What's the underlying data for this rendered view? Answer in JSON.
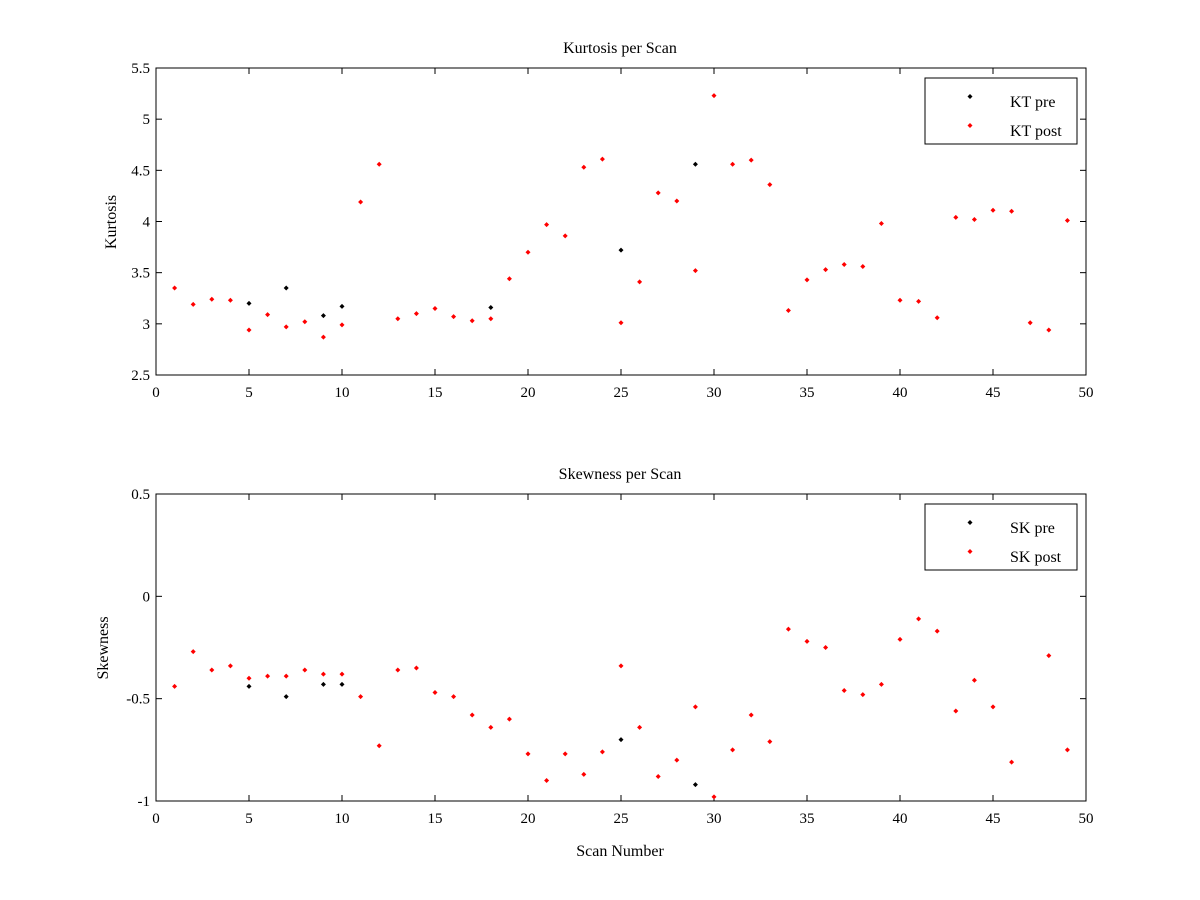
{
  "chart_data": [
    {
      "type": "scatter",
      "title": "Kurtosis per Scan",
      "xlabel": "",
      "ylabel": "Kurtosis",
      "xlim": [
        0,
        50
      ],
      "ylim": [
        2.5,
        5.5
      ],
      "xticks": [
        "0",
        "5",
        "10",
        "15",
        "20",
        "25",
        "30",
        "35",
        "40",
        "45",
        "50"
      ],
      "yticks": [
        "2.5",
        "3",
        "3.5",
        "4",
        "4.5",
        "5",
        "5.5"
      ],
      "grid": false,
      "legend_position": "top-right",
      "series": [
        {
          "name": "KT pre",
          "color": "#000000",
          "x": [
            5,
            7,
            9,
            10,
            18,
            25,
            29
          ],
          "y": [
            3.2,
            3.35,
            3.08,
            3.17,
            3.16,
            3.72,
            4.56
          ]
        },
        {
          "name": "KT post",
          "color": "#ff0000",
          "x": [
            1,
            2,
            3,
            4,
            5,
            6,
            7,
            8,
            9,
            10,
            11,
            12,
            13,
            14,
            15,
            16,
            17,
            18,
            19,
            20,
            21,
            22,
            23,
            24,
            25,
            26,
            27,
            28,
            29,
            30,
            31,
            32,
            33,
            34,
            35,
            36,
            37,
            38,
            39,
            40,
            41,
            42,
            43,
            44,
            45,
            46,
            47,
            48,
            49
          ],
          "y": [
            3.35,
            3.19,
            3.24,
            3.23,
            2.94,
            3.09,
            2.97,
            3.02,
            2.87,
            2.99,
            4.19,
            4.56,
            3.05,
            3.1,
            3.15,
            3.07,
            3.03,
            3.05,
            3.44,
            3.7,
            3.97,
            3.86,
            4.53,
            4.61,
            3.01,
            3.41,
            4.28,
            4.2,
            3.52,
            5.23,
            4.56,
            4.6,
            4.36,
            3.13,
            3.43,
            3.53,
            3.58,
            3.56,
            3.98,
            3.23,
            3.22,
            3.06,
            4.04,
            4.02,
            4.11,
            4.1,
            3.01,
            2.94,
            4.01
          ]
        }
      ]
    },
    {
      "type": "scatter",
      "title": "Skewness per Scan",
      "xlabel": "Scan Number",
      "ylabel": "Skewness",
      "xlim": [
        0,
        50
      ],
      "ylim": [
        -1,
        0.5
      ],
      "xticks": [
        "0",
        "5",
        "10",
        "15",
        "20",
        "25",
        "30",
        "35",
        "40",
        "45",
        "50"
      ],
      "yticks": [
        "-1",
        "-0.5",
        "0",
        "0.5"
      ],
      "grid": false,
      "legend_position": "top-right",
      "series": [
        {
          "name": "SK pre",
          "color": "#000000",
          "x": [
            5,
            7,
            9,
            10,
            25,
            29
          ],
          "y": [
            -0.44,
            -0.49,
            -0.43,
            -0.43,
            -0.7,
            -0.92
          ]
        },
        {
          "name": "SK post",
          "color": "#ff0000",
          "x": [
            1,
            2,
            3,
            4,
            5,
            6,
            7,
            8,
            9,
            10,
            11,
            12,
            13,
            14,
            15,
            16,
            17,
            18,
            19,
            20,
            21,
            22,
            23,
            24,
            25,
            26,
            27,
            28,
            29,
            30,
            31,
            32,
            33,
            34,
            35,
            36,
            37,
            38,
            39,
            40,
            41,
            42,
            43,
            44,
            45,
            46,
            48,
            49
          ],
          "y": [
            -0.44,
            -0.27,
            -0.36,
            -0.34,
            -0.4,
            -0.39,
            -0.39,
            -0.36,
            -0.38,
            -0.38,
            -0.49,
            -0.73,
            -0.36,
            -0.35,
            -0.47,
            -0.49,
            -0.58,
            -0.64,
            -0.6,
            -0.77,
            -0.9,
            -0.77,
            -0.87,
            -0.76,
            -0.34,
            -0.64,
            -0.88,
            -0.8,
            -0.54,
            -0.98,
            -0.75,
            -0.58,
            -0.71,
            -0.16,
            -0.22,
            -0.25,
            -0.46,
            -0.48,
            -0.43,
            -0.21,
            -0.11,
            -0.17,
            -0.56,
            -0.41,
            -0.54,
            -0.81,
            -0.29,
            -0.75
          ]
        }
      ]
    }
  ]
}
